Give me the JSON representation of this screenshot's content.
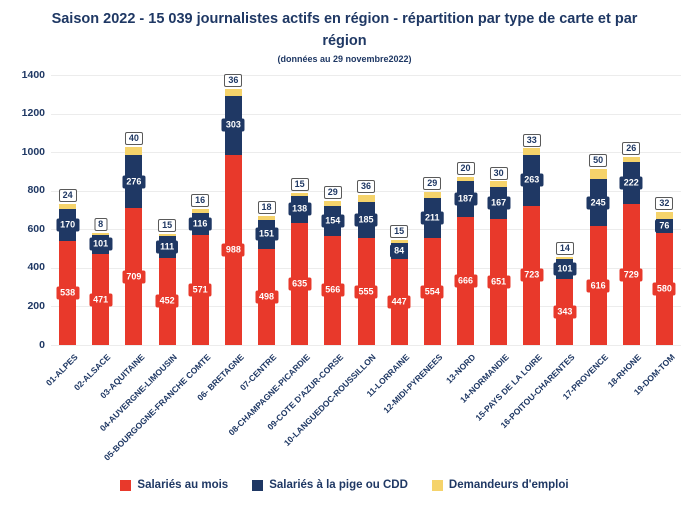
{
  "chart_data": {
    "type": "bar",
    "stacked": true,
    "title": "Saison 2022 - 15 039 journalistes actifs en région - répartition par type de carte et par région",
    "subtitle": "(données au 29 novembre2022)",
    "categories": [
      "01-ALPES",
      "02-ALSACE",
      "03-AQUITAINE",
      "04-AUVERGNE-LIMOUSIN",
      "05-BOURGOGNE-FRANCHE COMTE",
      "06- BRETAGNE",
      "07-CENTRE",
      "08-CHAMPAGNE-PICARDIE",
      "09-COTE D'AZUR-CORSE",
      "10-LANGUEDOC-ROUSSILLON",
      "11-LORRAINE",
      "12-MIDI-PYRENEES",
      "13-NORD",
      "14-NORMANDIE",
      "15-PAYS DE LA LOIRE",
      "16-POITOU-CHARENTES",
      "17-PROVENCE",
      "18-RHONE",
      "19-DOM-TOM"
    ],
    "series": [
      {
        "name": "Salariés au mois",
        "color": "#e8392b",
        "values": [
          538,
          471,
          709,
          452,
          571,
          988,
          498,
          635,
          566,
          555,
          447,
          554,
          666,
          651,
          723,
          343,
          616,
          729,
          580
        ]
      },
      {
        "name": "Salariés à la pige ou CDD",
        "color": "#1f3864",
        "values": [
          170,
          101,
          276,
          111,
          116,
          303,
          151,
          138,
          154,
          185,
          84,
          211,
          187,
          167,
          263,
          101,
          245,
          222,
          76
        ]
      },
      {
        "name": "Demandeurs d'emploi",
        "color": "#f5d36b",
        "values": [
          24,
          8,
          40,
          15,
          16,
          36,
          18,
          15,
          29,
          36,
          15,
          29,
          20,
          30,
          33,
          14,
          50,
          26,
          32
        ]
      }
    ],
    "ylim": [
      0,
      1400
    ],
    "yticks": [
      0,
      200,
      400,
      600,
      800,
      1000,
      1200,
      1400
    ],
    "grid": true,
    "legend_position": "bottom",
    "title_color": "#1f3864",
    "grid_color": "#ececec",
    "value_label_text_color": "#ffffff",
    "top_label_border_color": "#595959",
    "background_color": "#ffffff"
  }
}
